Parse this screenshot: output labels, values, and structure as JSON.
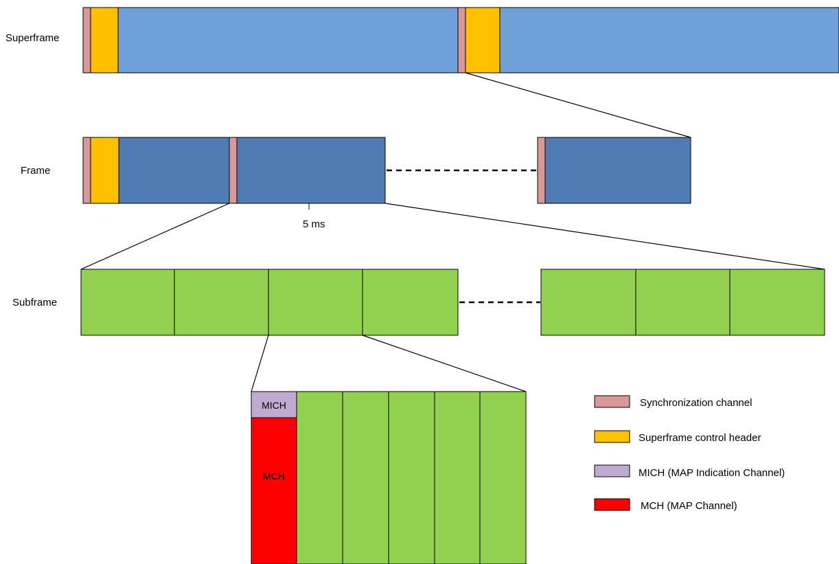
{
  "colors": {
    "sync": "#d89896",
    "header": "#ffc000",
    "superframe_body": "#6fa0da",
    "frame_body": "#4f7ab2",
    "subframe": "#92d050",
    "mich": "#c0abd0",
    "mch": "#ff0000"
  },
  "rows": {
    "superframe": "Superframe",
    "frame": "Frame",
    "subframe": "Subframe"
  },
  "frame_duration": "5 ms",
  "blocks": {
    "mich": "MICH",
    "mch": "MCH"
  },
  "legend": [
    {
      "key": "sync",
      "label": "Synchronization channel"
    },
    {
      "key": "header",
      "label": "Superframe control header"
    },
    {
      "key": "mich",
      "label": "MICH (MAP Indication Channel)"
    },
    {
      "key": "mch",
      "label": "MCH (MAP Channel)"
    }
  ]
}
